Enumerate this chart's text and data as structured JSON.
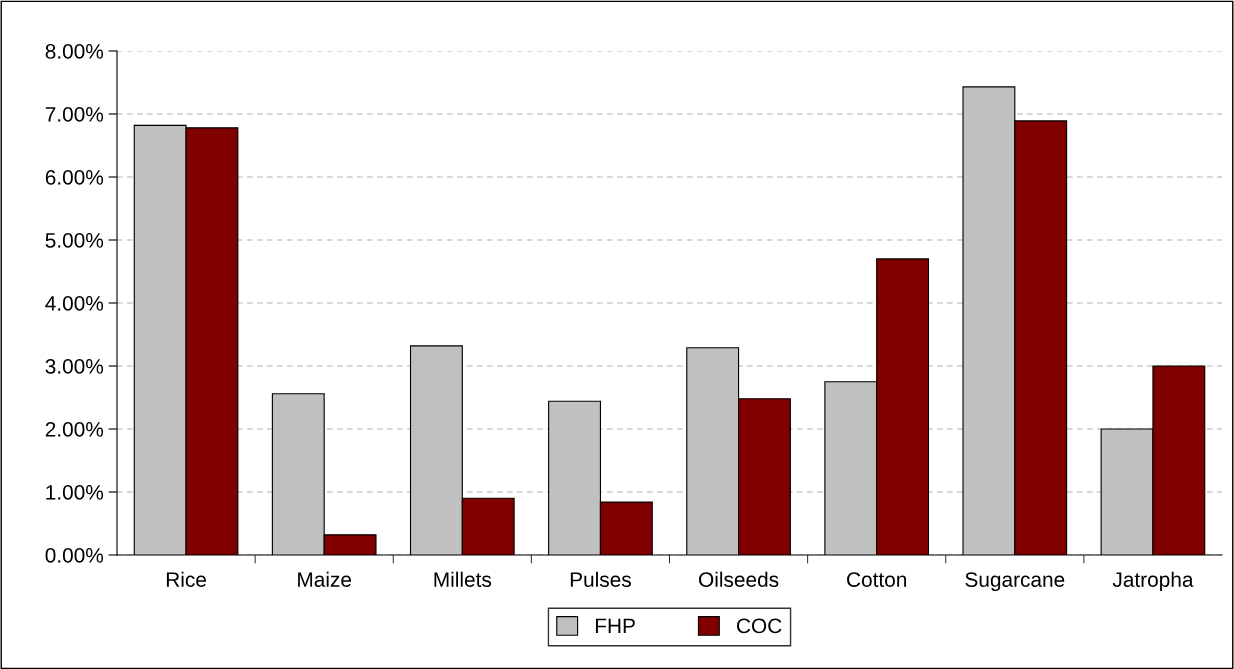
{
  "chart_data": {
    "type": "bar",
    "categories": [
      "Rice",
      "Maize",
      "Millets",
      "Pulses",
      "Oilseeds",
      "Cotton",
      "Sugarcane",
      "Jatropha"
    ],
    "series": [
      {
        "name": "FHP",
        "color": "#c0c0c0",
        "values": [
          6.82,
          2.56,
          3.32,
          2.44,
          3.29,
          2.75,
          7.43,
          2.0
        ]
      },
      {
        "name": "COC",
        "color": "#800000",
        "values": [
          6.78,
          0.32,
          0.9,
          0.84,
          2.48,
          4.7,
          6.89,
          3.0
        ]
      }
    ],
    "ylim": [
      0,
      8
    ],
    "yticks": [
      {
        "value": 0,
        "label": "0.00%"
      },
      {
        "value": 1,
        "label": "1.00%"
      },
      {
        "value": 2,
        "label": "2.00%"
      },
      {
        "value": 3,
        "label": "3.00%"
      },
      {
        "value": 4,
        "label": "4.00%"
      },
      {
        "value": 5,
        "label": "5.00%"
      },
      {
        "value": 6,
        "label": "6.00%"
      },
      {
        "value": 7,
        "label": "7.00%"
      },
      {
        "value": 8,
        "label": "8.00%"
      }
    ],
    "grid": "y",
    "legend": "bottom"
  }
}
